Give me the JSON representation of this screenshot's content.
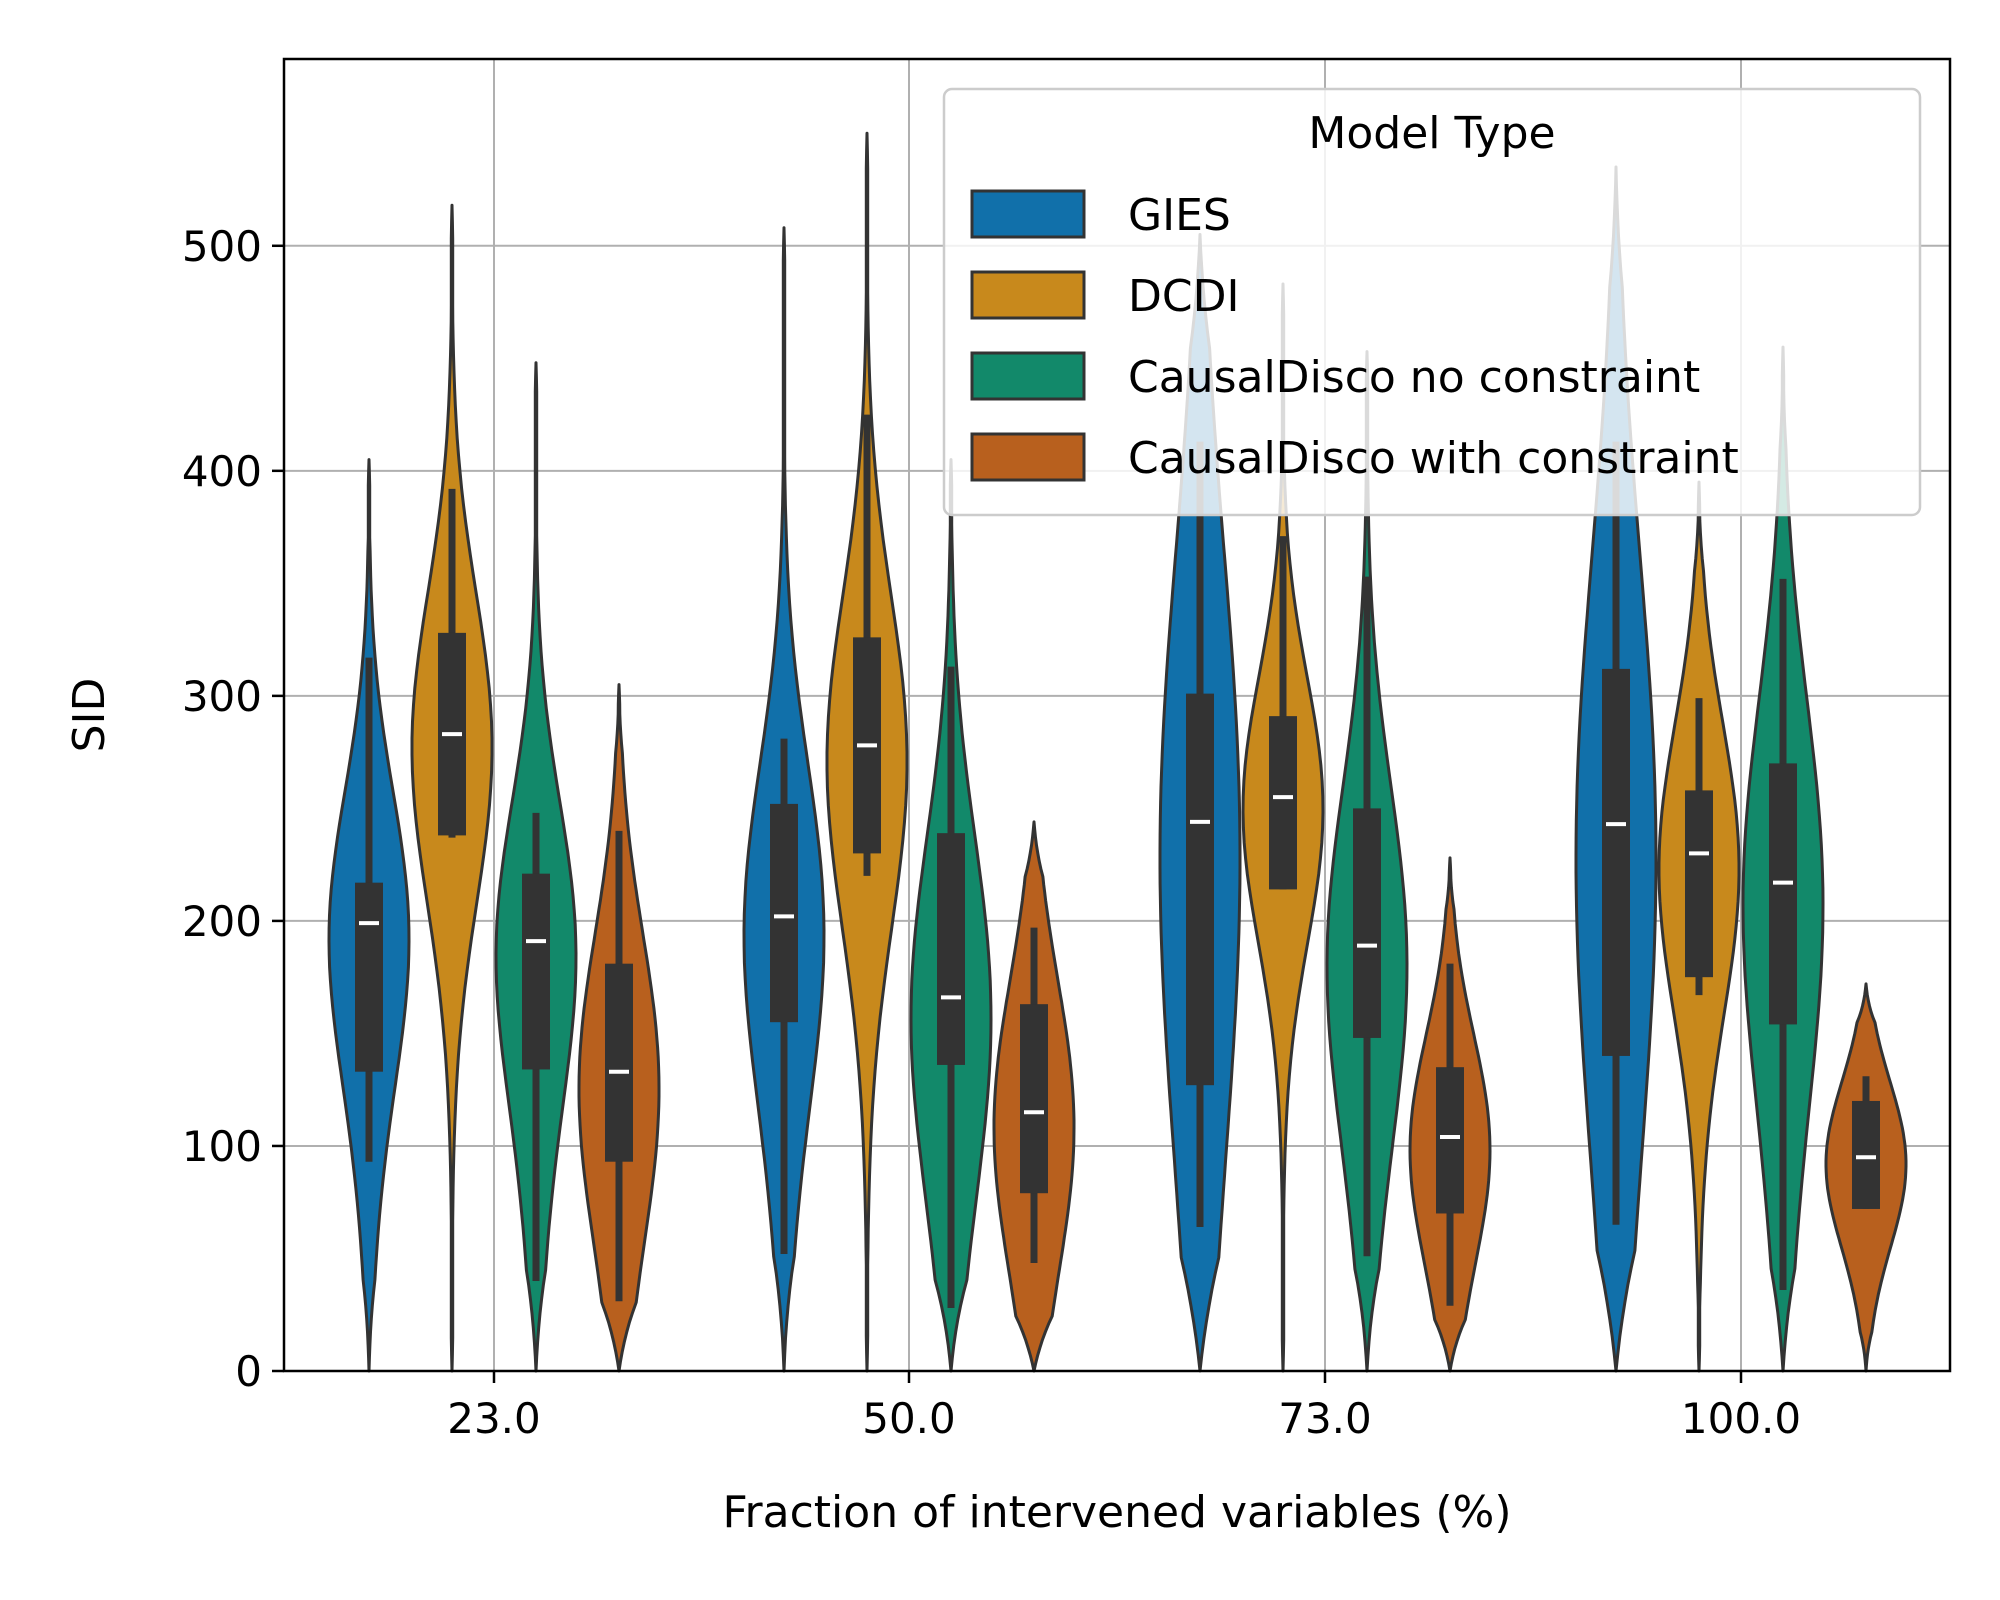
{
  "chart_data": {
    "type": "violin",
    "xlabel": "Fraction of intervened variables (%)",
    "ylabel": "SID",
    "categories": [
      "23.0",
      "50.0",
      "73.0",
      "100.0"
    ],
    "ylim": [
      0,
      583
    ],
    "yticks": [
      0,
      100,
      200,
      300,
      400,
      500
    ],
    "grid": true,
    "legend": {
      "title": "Model Type",
      "position": "top-right"
    },
    "colors": {
      "GIES": "#1170aa",
      "DCDI": "#c8891c",
      "CausalDisco no constraint": "#12896a",
      "CausalDisco with constraint": "#b8601e",
      "edge": "#333333",
      "grid": "#b0b0b0"
    },
    "series": [
      {
        "name": "GIES",
        "groups": [
          {
            "min": 0,
            "max": 405,
            "q1": 133,
            "median": 199,
            "q3": 217,
            "whisker_low": 93,
            "whisker_high": 317
          },
          {
            "min": 0,
            "max": 508,
            "q1": 155,
            "median": 202,
            "q3": 252,
            "whisker_low": 52,
            "whisker_high": 281
          },
          {
            "min": 0,
            "max": 505,
            "q1": 127,
            "median": 244,
            "q3": 301,
            "whisker_low": 64,
            "whisker_high": 413
          },
          {
            "min": 0,
            "max": 535,
            "q1": 140,
            "median": 243,
            "q3": 312,
            "whisker_low": 65,
            "whisker_high": 413
          }
        ]
      },
      {
        "name": "DCDI",
        "groups": [
          {
            "min": 0,
            "max": 518,
            "q1": 238,
            "median": 283,
            "q3": 328,
            "whisker_low": 237,
            "whisker_high": 392
          },
          {
            "min": 0,
            "max": 550,
            "q1": 230,
            "median": 278,
            "q3": 326,
            "whisker_low": 220,
            "whisker_high": 425
          },
          {
            "min": 0,
            "max": 483,
            "q1": 214,
            "median": 255,
            "q3": 291,
            "whisker_low": 214,
            "whisker_high": 371
          },
          {
            "min": 0,
            "max": 395,
            "q1": 175,
            "median": 230,
            "q3": 258,
            "whisker_low": 167,
            "whisker_high": 299
          }
        ]
      },
      {
        "name": "CausalDisco no constraint",
        "groups": [
          {
            "min": 0,
            "max": 448,
            "q1": 134,
            "median": 191,
            "q3": 221,
            "whisker_low": 40,
            "whisker_high": 248
          },
          {
            "min": 0,
            "max": 405,
            "q1": 136,
            "median": 166,
            "q3": 239,
            "whisker_low": 28,
            "whisker_high": 313
          },
          {
            "min": 0,
            "max": 453,
            "q1": 148,
            "median": 189,
            "q3": 250,
            "whisker_low": 51,
            "whisker_high": 353
          },
          {
            "min": 0,
            "max": 455,
            "q1": 154,
            "median": 217,
            "q3": 270,
            "whisker_low": 36,
            "whisker_high": 352
          }
        ]
      },
      {
        "name": "CausalDisco with constraint",
        "groups": [
          {
            "min": 0,
            "max": 305,
            "q1": 93,
            "median": 133,
            "q3": 181,
            "whisker_low": 31,
            "whisker_high": 240
          },
          {
            "min": 0,
            "max": 244,
            "q1": 79,
            "median": 115,
            "q3": 163,
            "whisker_low": 48,
            "whisker_high": 197
          },
          {
            "min": 0,
            "max": 228,
            "q1": 70,
            "median": 104,
            "q3": 135,
            "whisker_low": 29,
            "whisker_high": 181
          },
          {
            "min": 0,
            "max": 172,
            "q1": 72,
            "median": 95,
            "q3": 120,
            "whisker_low": 72,
            "whisker_high": 131
          }
        ]
      }
    ]
  }
}
